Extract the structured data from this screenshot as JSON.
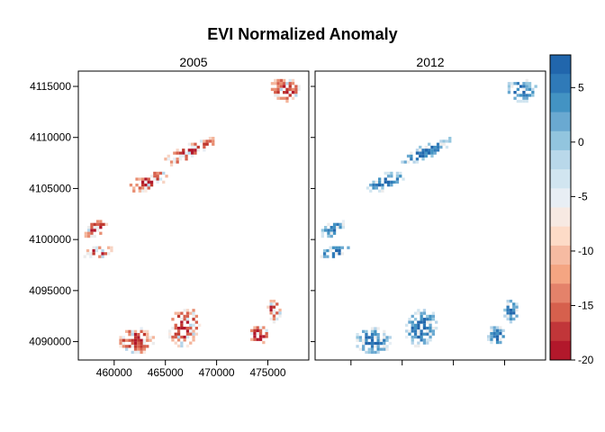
{
  "title": "EVI Normalized Anomaly",
  "panels": [
    {
      "label": "2005",
      "anomaly_sign": "negative"
    },
    {
      "label": "2012",
      "anomaly_sign": "positive"
    }
  ],
  "x_axis": {
    "range": [
      456500,
      479000
    ],
    "ticks": [
      460000,
      465000,
      470000,
      475000
    ],
    "tick_labels": [
      "460000",
      "465000",
      "470000",
      "475000"
    ]
  },
  "y_axis": {
    "range": [
      4088200,
      4116500
    ],
    "ticks": [
      4090000,
      4095000,
      4100000,
      4105000,
      4110000,
      4115000
    ],
    "tick_labels": [
      "4090000",
      "4095000",
      "4100000",
      "4105000",
      "4110000",
      "4115000"
    ]
  },
  "colorbar": {
    "range": [
      -20,
      8
    ],
    "tick_values": [
      5,
      0,
      -5,
      -10,
      -15,
      -20
    ],
    "tick_labels": [
      "5",
      "0",
      "-5",
      "-10",
      "-15",
      "-20"
    ],
    "colors_top_to_bottom": [
      "#2166ac",
      "#2f7ab8",
      "#4393c3",
      "#6aa9d1",
      "#92c5de",
      "#b9d8ea",
      "#d1e5f0",
      "#e8eef4",
      "#f7e9e2",
      "#fddbc7",
      "#f6bba2",
      "#f4a582",
      "#e4826a",
      "#d6604d",
      "#c13639",
      "#b2182b"
    ],
    "bottom_color": "#b2182b"
  },
  "patches": [
    {
      "cx": 476500,
      "cy": 4114800,
      "rx": 1500,
      "ry": 1200
    },
    {
      "cx": 467300,
      "cy": 4108800,
      "rx": 3000,
      "ry": 700,
      "rot": -25
    },
    {
      "cx": 463200,
      "cy": 4105800,
      "rx": 2000,
      "ry": 800,
      "rot": -20
    },
    {
      "cx": 458100,
      "cy": 4101200,
      "rx": 1300,
      "ry": 700,
      "rot": -30
    },
    {
      "cx": 458300,
      "cy": 4098900,
      "rx": 1600,
      "ry": 600,
      "rot": -15
    },
    {
      "cx": 462000,
      "cy": 4090200,
      "rx": 1800,
      "ry": 1300
    },
    {
      "cx": 466700,
      "cy": 4091500,
      "rx": 1500,
      "ry": 2000,
      "rot": 20
    },
    {
      "cx": 474000,
      "cy": 4090800,
      "rx": 1000,
      "ry": 1000
    },
    {
      "cx": 475500,
      "cy": 4093200,
      "rx": 700,
      "ry": 1200
    }
  ]
}
